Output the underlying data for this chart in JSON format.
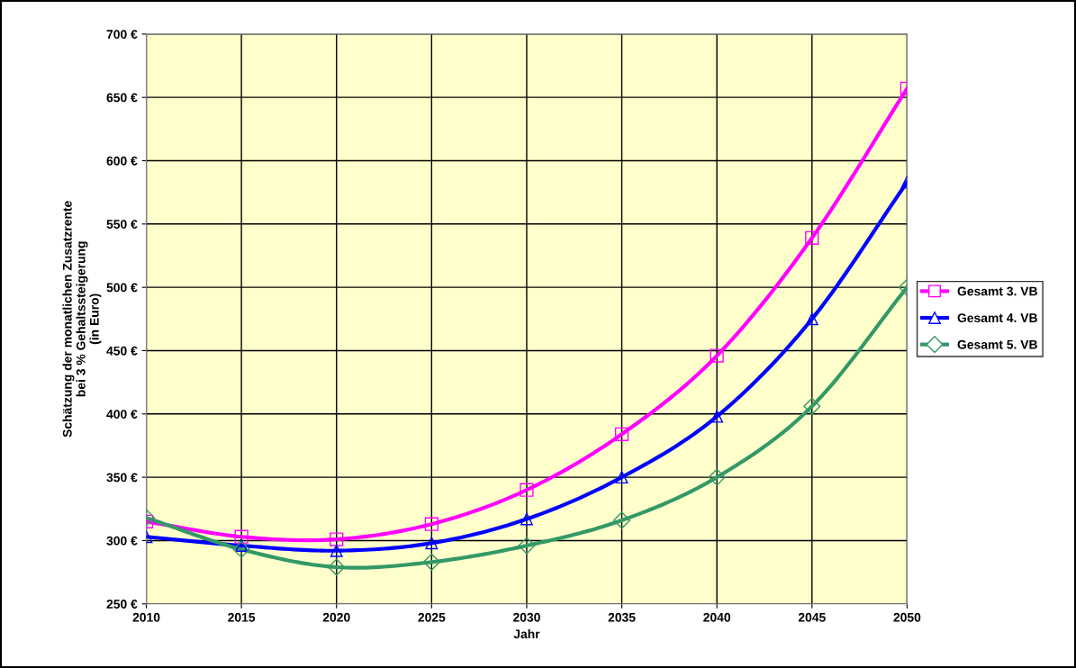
{
  "chart_data": {
    "type": "line",
    "xlabel": "Jahr",
    "ylabel": "Schätzung der monatlichen Zusatzrente\nbei 3 % Gehaltssteigerung\n(in Euro)",
    "x": [
      2010,
      2015,
      2020,
      2025,
      2030,
      2035,
      2040,
      2045,
      2050
    ],
    "series": [
      {
        "name": "Gesamt 3. VB",
        "color": "#ff00ff",
        "marker": "square",
        "values": [
          315,
          303,
          301,
          313,
          340,
          384,
          446,
          539,
          657
        ]
      },
      {
        "name": "Gesamt 4. VB",
        "color": "#0000ff",
        "marker": "triangle",
        "values": [
          303,
          296,
          292,
          298,
          317,
          350,
          398,
          475,
          583
        ]
      },
      {
        "name": "Gesamt 5. VB",
        "color": "#339966",
        "marker": "diamond",
        "values": [
          318,
          293,
          279,
          283,
          296,
          316,
          350,
          406,
          500
        ]
      }
    ],
    "xlim": [
      2010,
      2050
    ],
    "xticks": [
      2010,
      2015,
      2020,
      2025,
      2030,
      2035,
      2040,
      2045,
      2050
    ],
    "ylim": [
      250,
      700
    ],
    "yticks": [
      {
        "value": 250,
        "label": "250 €"
      },
      {
        "value": 300,
        "label": "300 €"
      },
      {
        "value": 350,
        "label": "350 €"
      },
      {
        "value": 400,
        "label": "400 €"
      },
      {
        "value": 450,
        "label": "450 €"
      },
      {
        "value": 500,
        "label": "500 €"
      },
      {
        "value": 550,
        "label": "550 €"
      },
      {
        "value": 600,
        "label": "600 €"
      },
      {
        "value": 650,
        "label": "650 €"
      },
      {
        "value": 700,
        "label": "700 €"
      }
    ],
    "grid": true,
    "legend": "right",
    "line_style": "solid"
  }
}
